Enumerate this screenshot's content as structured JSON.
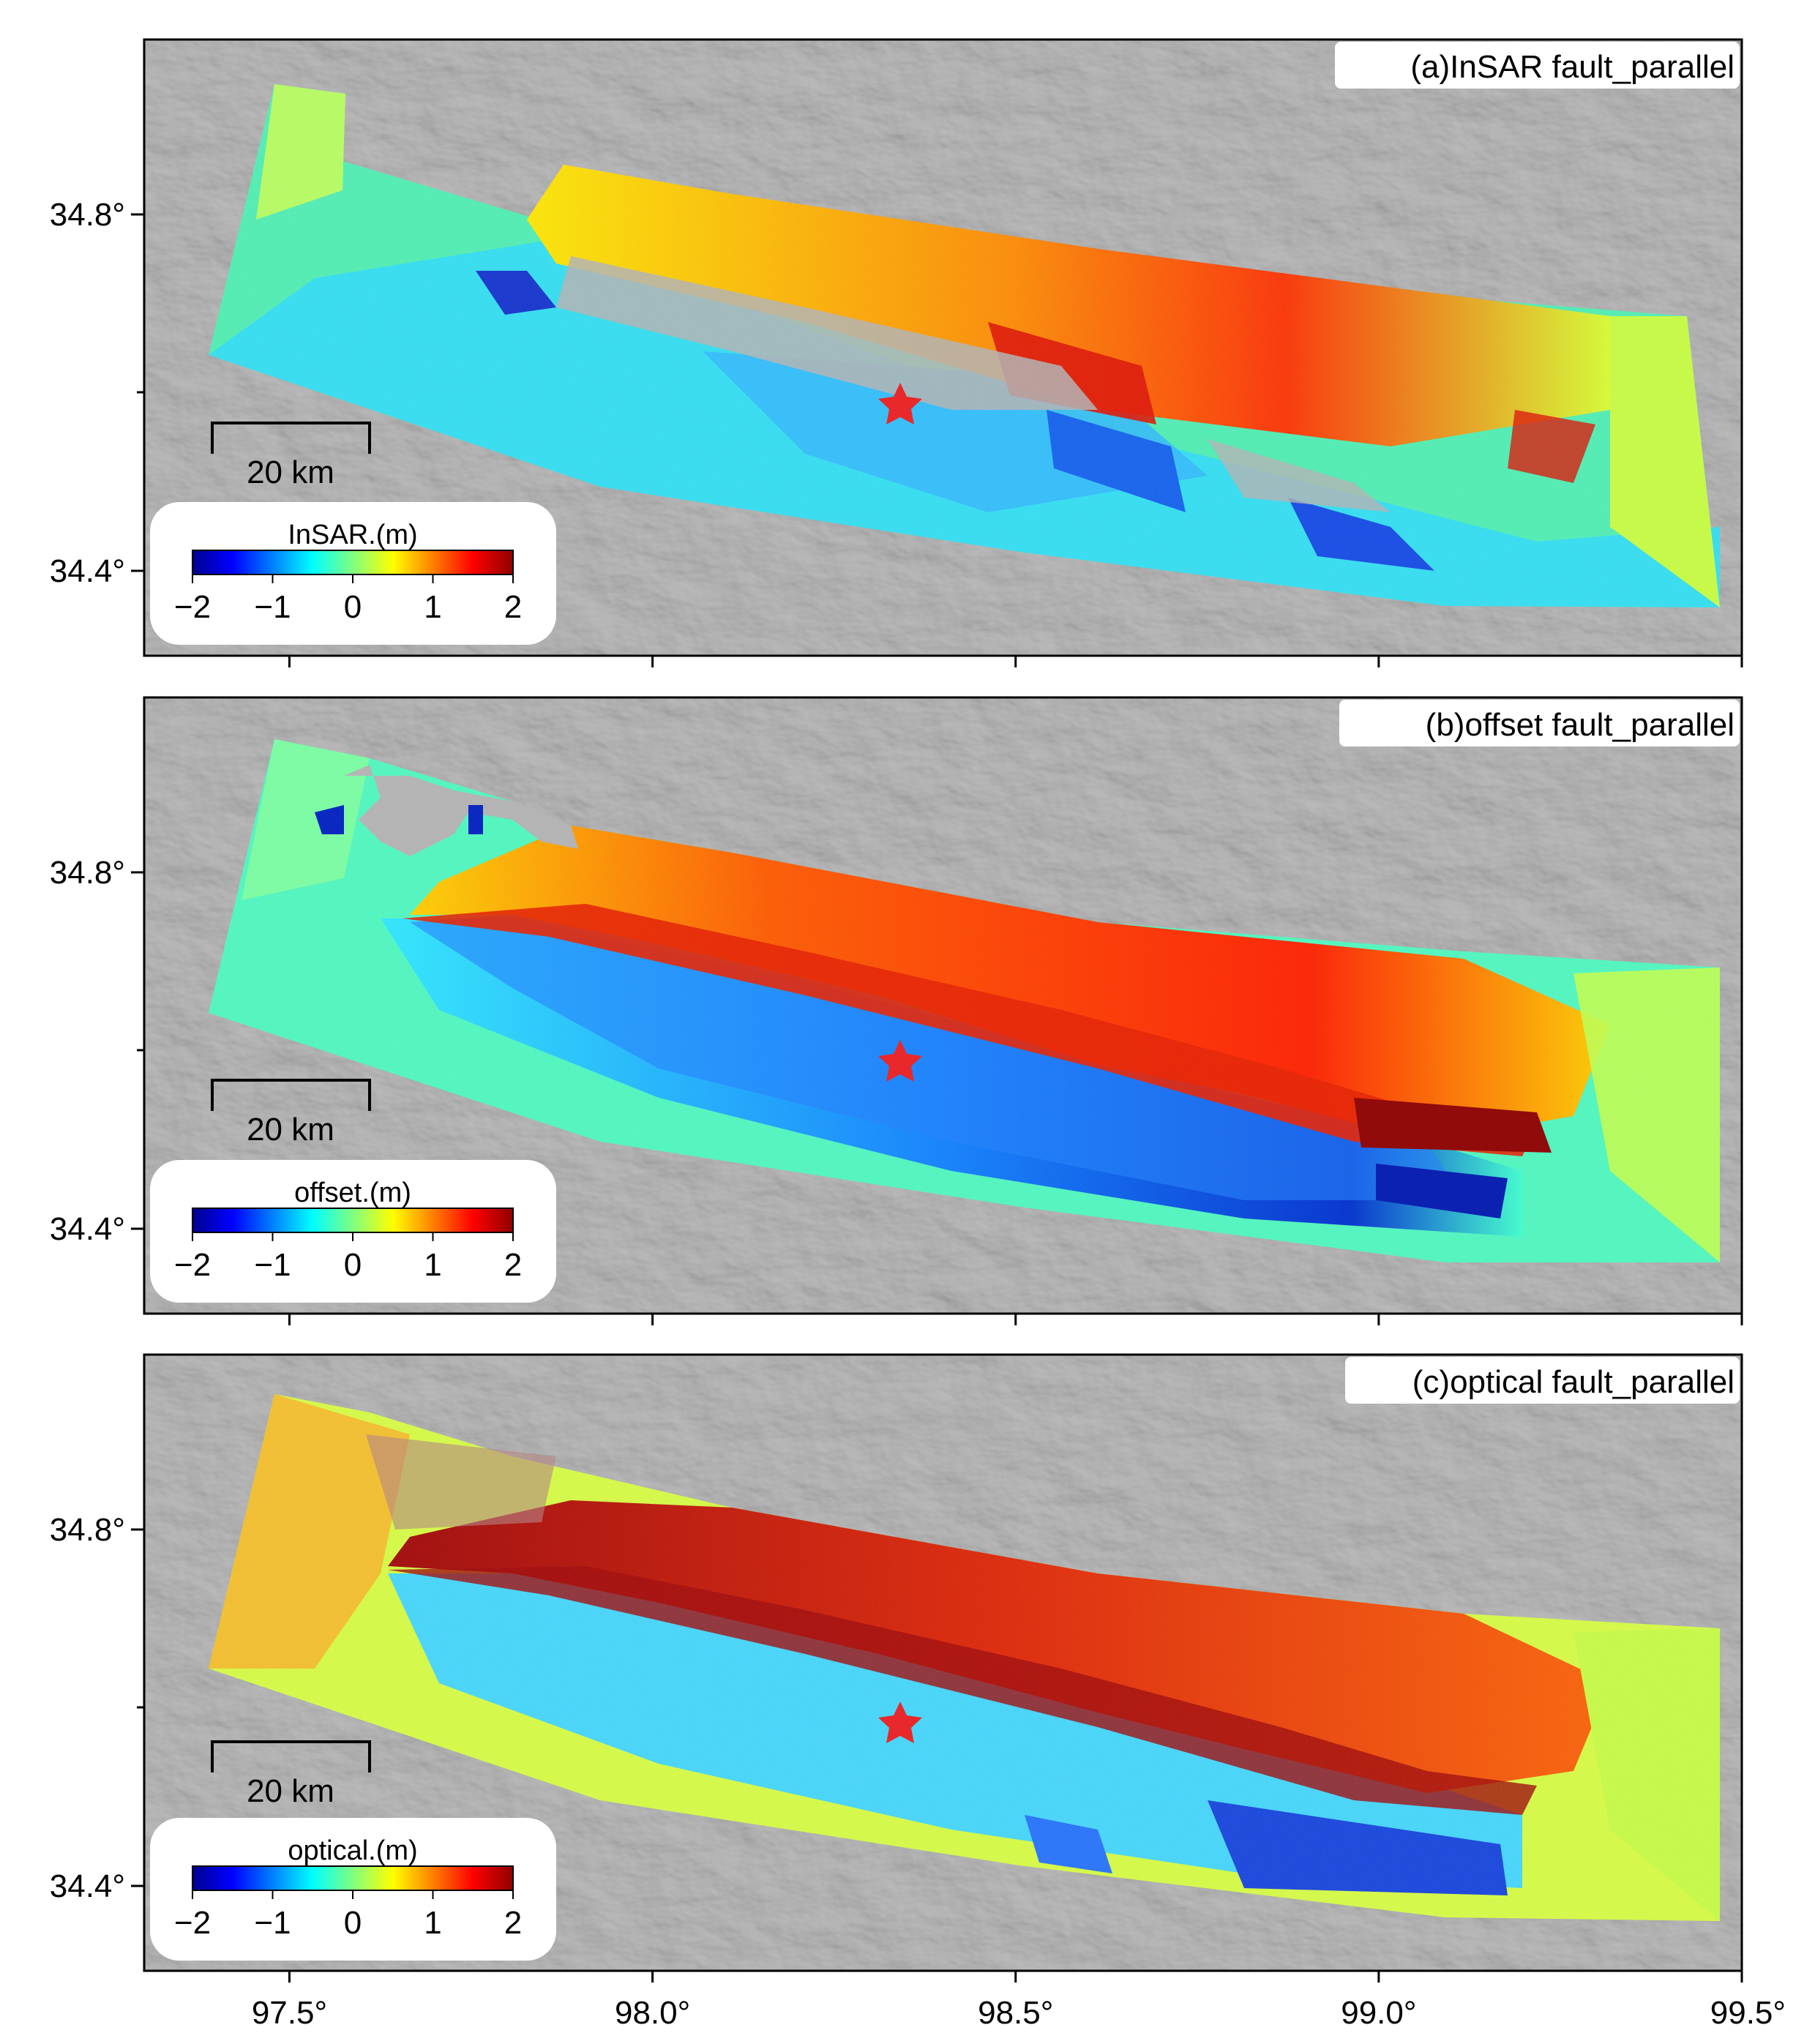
{
  "panels": [
    {
      "title": "(a)InSAR fault_parallel",
      "colorbar_label": "InSAR.(m)",
      "pattern": "insar"
    },
    {
      "title": "(b)offset fault_parallel",
      "colorbar_label": "offset.(m)",
      "pattern": "offset"
    },
    {
      "title": "(c)optical fault_parallel",
      "colorbar_label": "optical.(m)",
      "pattern": "optical"
    }
  ],
  "scale_bar_label": "20 km",
  "colorbar_ticks": [
    "−2",
    "−1",
    "0",
    "1",
    "2"
  ],
  "colorbar_range": [
    -2,
    2
  ],
  "colormap": [
    "#00008f",
    "#0040ff",
    "#00c0ff",
    "#40ffc0",
    "#c0ff40",
    "#ffc000",
    "#ff4000",
    "#8f0000"
  ],
  "lat_ticks": [
    "34.8°",
    "34.4°"
  ],
  "lon_ticks": [
    "97.5°",
    "98.0°",
    "98.5°",
    "99.0°",
    "99.5°"
  ],
  "colors": {
    "background_gray": "#b4b4b4",
    "epicenter_star": "#e8282a"
  }
}
